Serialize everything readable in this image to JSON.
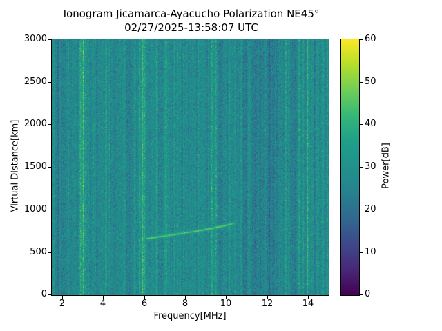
{
  "chart_data": {
    "type": "heatmap",
    "title": "Ionogram Jicamarca-Ayacucho Polarization NE45°",
    "subtitle": "02/27/2025-13:58:07 UTC",
    "xlabel": "Frequency[MHz]",
    "ylabel": "Virtual Distance[km]",
    "colorbar_label": "Power[dB]",
    "xlim": [
      1.5,
      15.0
    ],
    "ylim": [
      0,
      3000
    ],
    "clim": [
      0,
      60
    ],
    "x_ticks": [
      2,
      4,
      6,
      8,
      10,
      12,
      14
    ],
    "y_ticks": [
      0,
      500,
      1000,
      1500,
      2000,
      2500,
      3000
    ],
    "colorbar_ticks": [
      0,
      10,
      20,
      30,
      40,
      50,
      60
    ],
    "grid": false,
    "legend": "none",
    "colormap": "viridis",
    "viridis_stops": [
      "#440154",
      "#482878",
      "#3e4989",
      "#31688e",
      "#26828e",
      "#21918c",
      "#1f9e89",
      "#35b779",
      "#6ece58",
      "#b5de2b",
      "#fde725"
    ],
    "background_noise": {
      "mean_db": 27.5,
      "pixel_std_db": 4.6,
      "column_std_db": 2.2,
      "seed": 1337
    },
    "rfi_bright_stripes": [
      [
        1.62,
        0.03,
        5
      ],
      [
        2.3,
        0.03,
        4
      ],
      [
        2.92,
        0.035,
        13
      ],
      [
        3.03,
        0.03,
        17
      ],
      [
        3.14,
        0.03,
        9
      ],
      [
        4.14,
        0.03,
        11
      ],
      [
        4.32,
        0.025,
        6
      ],
      [
        5.56,
        0.025,
        6
      ],
      [
        5.79,
        0.03,
        9
      ],
      [
        5.93,
        0.03,
        13
      ],
      [
        6.03,
        0.028,
        10
      ],
      [
        6.36,
        0.025,
        5
      ],
      [
        6.63,
        0.03,
        9
      ],
      [
        7.06,
        0.025,
        6
      ],
      [
        7.46,
        0.025,
        7
      ],
      [
        8.06,
        0.025,
        5
      ],
      [
        8.66,
        0.025,
        4
      ],
      [
        9.29,
        0.03,
        12
      ],
      [
        9.52,
        0.03,
        10
      ],
      [
        10.16,
        0.025,
        5
      ],
      [
        10.72,
        0.025,
        4
      ],
      [
        12.92,
        0.035,
        10
      ],
      [
        13.07,
        0.03,
        7
      ],
      [
        13.56,
        0.035,
        9
      ],
      [
        13.77,
        0.03,
        7
      ],
      [
        13.97,
        0.035,
        10
      ],
      [
        14.17,
        0.03,
        8
      ],
      [
        14.47,
        0.035,
        9
      ],
      [
        14.72,
        0.03,
        6
      ],
      [
        14.92,
        0.03,
        7
      ]
    ],
    "rfi_dark_stripes": [
      [
        1.78,
        0.05,
        -5
      ],
      [
        2.15,
        0.06,
        -4
      ],
      [
        3.38,
        0.04,
        -4
      ],
      [
        5.32,
        0.05,
        -4
      ],
      [
        7.82,
        0.06,
        -3
      ],
      [
        10.96,
        0.1,
        -4
      ],
      [
        11.55,
        0.15,
        -5
      ],
      [
        12.12,
        0.08,
        -6
      ],
      [
        12.48,
        0.07,
        -4
      ],
      [
        13.32,
        0.05,
        -5
      ],
      [
        14.32,
        0.03,
        -4
      ]
    ],
    "echo_trace": {
      "description": "ionospheric echo trace rising from ~655 km at 5.9 MHz to ~856 km at 10.55 MHz",
      "points": [
        [
          5.9,
          655
        ],
        [
          6.4,
          672
        ],
        [
          7.0,
          694
        ],
        [
          7.6,
          714
        ],
        [
          8.2,
          737
        ],
        [
          8.8,
          760
        ],
        [
          9.4,
          787
        ],
        [
          9.9,
          812
        ],
        [
          10.3,
          836
        ],
        [
          10.55,
          856
        ]
      ],
      "power_db": 47,
      "halfwidth_km": 8
    }
  }
}
